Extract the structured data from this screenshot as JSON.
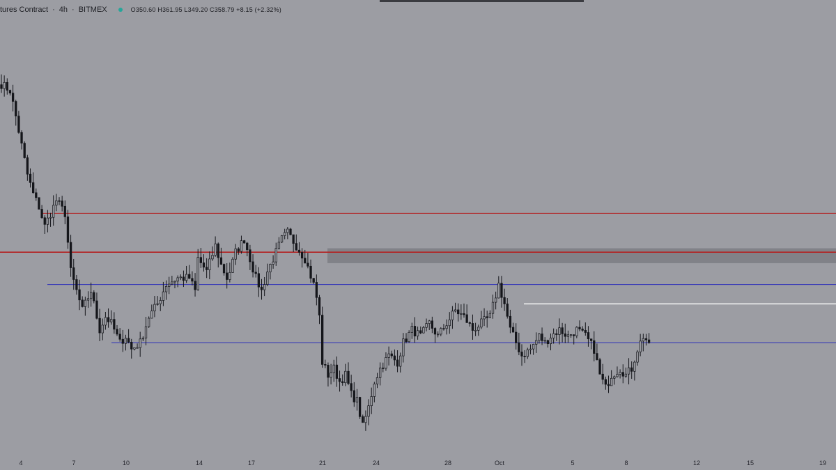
{
  "header": {
    "symbol": "tures Contract",
    "interval": "4h",
    "exchange": "BITMEX",
    "ohlc": "O350.60 H361.95 L349.20 C358.79 +8.15 (+2.32%)"
  },
  "colors": {
    "background": "#9c9da3",
    "candle": "#15161b",
    "resistance": "#b32222",
    "range": "#2b2fb8",
    "marker": "#ffffff",
    "zone": "#6b6c72"
  },
  "chart_data": {
    "type": "candlestick",
    "interval": "4h",
    "ylim": [
      300,
      370
    ],
    "x_tick_labels": [
      "4",
      "7",
      "10",
      "14",
      "17",
      "21",
      "24",
      "28",
      "Oct",
      "5",
      "8",
      "12",
      "15",
      "19"
    ],
    "path": [
      [
        0,
        357
      ],
      [
        3,
        356
      ],
      [
        5,
        352
      ],
      [
        9,
        343
      ],
      [
        11,
        340
      ],
      [
        13,
        338
      ],
      [
        15,
        335
      ],
      [
        17,
        337
      ],
      [
        19,
        339
      ],
      [
        22,
        337
      ],
      [
        24,
        328
      ],
      [
        28,
        322
      ],
      [
        31,
        325
      ],
      [
        34,
        319
      ],
      [
        36,
        321
      ],
      [
        38,
        320
      ],
      [
        41,
        317
      ],
      [
        43,
        318
      ],
      [
        45,
        316
      ],
      [
        48,
        317
      ],
      [
        51,
        321
      ],
      [
        54,
        323
      ],
      [
        57,
        326
      ],
      [
        61,
        327
      ],
      [
        65,
        327
      ],
      [
        67,
        325
      ],
      [
        68,
        330
      ],
      [
        71,
        328
      ],
      [
        74,
        332
      ],
      [
        76,
        329
      ],
      [
        78,
        327
      ],
      [
        79,
        328
      ],
      [
        81,
        331
      ],
      [
        84,
        333
      ],
      [
        86,
        330
      ],
      [
        88,
        327
      ],
      [
        90,
        325
      ],
      [
        92,
        328
      ],
      [
        94,
        330
      ],
      [
        97,
        333
      ],
      [
        99,
        334
      ],
      [
        102,
        332
      ],
      [
        105,
        330
      ],
      [
        108,
        326
      ],
      [
        109,
        324
      ],
      [
        110,
        321
      ],
      [
        111,
        314
      ],
      [
        113,
        312
      ],
      [
        115,
        313
      ],
      [
        117,
        311
      ],
      [
        119,
        312
      ],
      [
        121,
        309
      ],
      [
        123,
        308
      ],
      [
        125,
        304
      ],
      [
        127,
        307
      ],
      [
        129,
        311
      ],
      [
        131,
        313
      ],
      [
        134,
        315
      ],
      [
        137,
        314
      ],
      [
        139,
        317
      ],
      [
        142,
        319
      ],
      [
        145,
        318
      ],
      [
        148,
        320
      ],
      [
        151,
        318
      ],
      [
        154,
        320
      ],
      [
        157,
        322
      ],
      [
        160,
        321
      ],
      [
        163,
        319
      ],
      [
        166,
        320
      ],
      [
        169,
        321
      ],
      [
        172,
        326
      ],
      [
        174,
        323
      ],
      [
        176,
        319
      ],
      [
        178,
        317
      ],
      [
        180,
        315
      ],
      [
        183,
        316
      ],
      [
        186,
        318
      ],
      [
        188,
        317
      ],
      [
        190,
        318
      ],
      [
        193,
        319
      ],
      [
        196,
        318
      ],
      [
        199,
        319
      ],
      [
        202,
        318
      ],
      [
        205,
        316
      ],
      [
        207,
        312
      ],
      [
        209,
        310
      ],
      [
        211,
        312
      ],
      [
        214,
        313
      ],
      [
        216,
        312
      ],
      [
        218,
        313
      ],
      [
        220,
        316
      ],
      [
        222,
        318
      ],
      [
        224,
        317
      ]
    ],
    "horizontal_lines": [
      {
        "color": "red",
        "style": "thin",
        "y": 337
      },
      {
        "color": "red",
        "style": "bold",
        "y": 331
      },
      {
        "color": "blue",
        "y": 326
      },
      {
        "color": "blue",
        "y": 317
      },
      {
        "color": "white",
        "y": 323
      }
    ],
    "zone": {
      "y_from": 329.3,
      "y_to": 331.6
    }
  }
}
